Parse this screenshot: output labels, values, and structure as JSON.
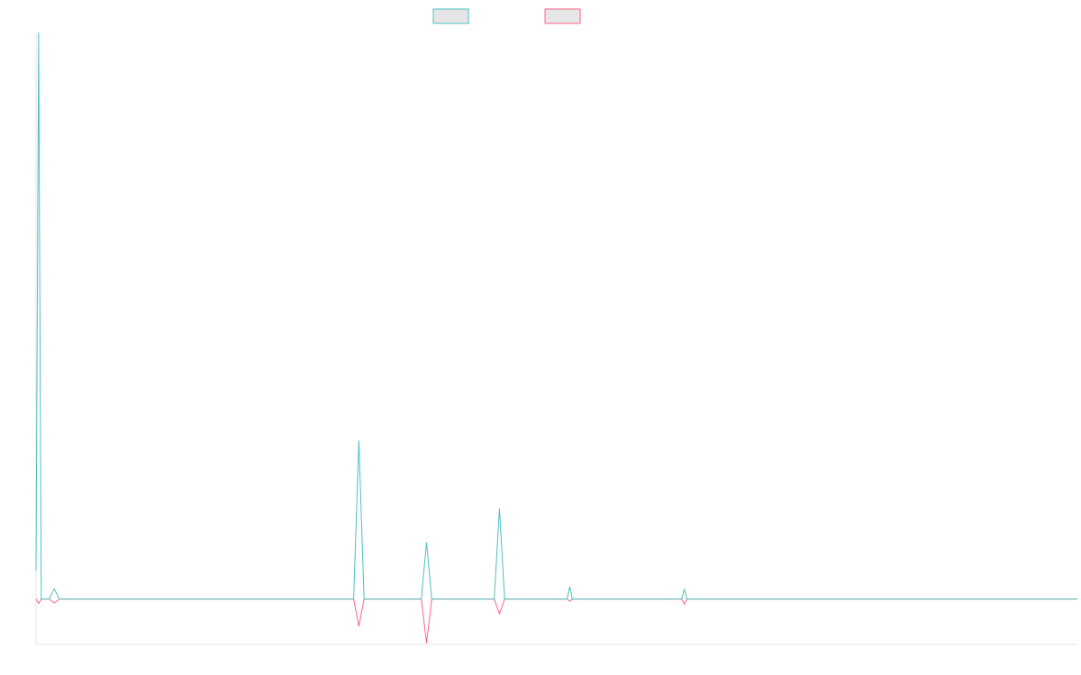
{
  "chart_data": {
    "type": "line",
    "title": "",
    "xlabel": "",
    "ylabel": "",
    "legend_position": "top-center",
    "grid": false,
    "x_index_range": [
      0,
      200
    ],
    "ylim": [
      -0.08,
      1.0
    ],
    "baseline": 0,
    "series": [
      {
        "color": "#4bc0c0",
        "points": [
          [
            0,
            0.05
          ],
          [
            0.5,
            1.0
          ],
          [
            1,
            0.0
          ],
          [
            2.5,
            0.0
          ],
          [
            3.5,
            0.018
          ],
          [
            4.5,
            0.0
          ],
          [
            61,
            0.0
          ],
          [
            62,
            0.28
          ],
          [
            63,
            0.0
          ],
          [
            74,
            0.0
          ],
          [
            75,
            0.1
          ],
          [
            76,
            0.0
          ],
          [
            88,
            0.0
          ],
          [
            89,
            0.16
          ],
          [
            90,
            0.0
          ],
          [
            102,
            0.0
          ],
          [
            102.5,
            0.022
          ],
          [
            103,
            0.0
          ],
          [
            124,
            0.0
          ],
          [
            124.5,
            0.018
          ],
          [
            125,
            0.0
          ],
          [
            200,
            0.0
          ]
        ]
      },
      {
        "color": "#ff6384",
        "points": [
          [
            0,
            0.0
          ],
          [
            0.5,
            -0.008
          ],
          [
            1,
            0.0
          ],
          [
            2.5,
            0.0
          ],
          [
            3.5,
            -0.007
          ],
          [
            4.5,
            0.0
          ],
          [
            61,
            0.0
          ],
          [
            62,
            -0.048
          ],
          [
            63,
            0.0
          ],
          [
            74,
            0.0
          ],
          [
            75,
            -0.078
          ],
          [
            76,
            0.0
          ],
          [
            88,
            0.0
          ],
          [
            89,
            -0.026
          ],
          [
            90,
            0.0
          ],
          [
            102,
            0.0
          ],
          [
            102.5,
            -0.004
          ],
          [
            103,
            0.0
          ],
          [
            124,
            0.0
          ],
          [
            124.5,
            -0.009
          ],
          [
            125,
            0.0
          ],
          [
            200,
            0.0
          ]
        ]
      }
    ]
  }
}
